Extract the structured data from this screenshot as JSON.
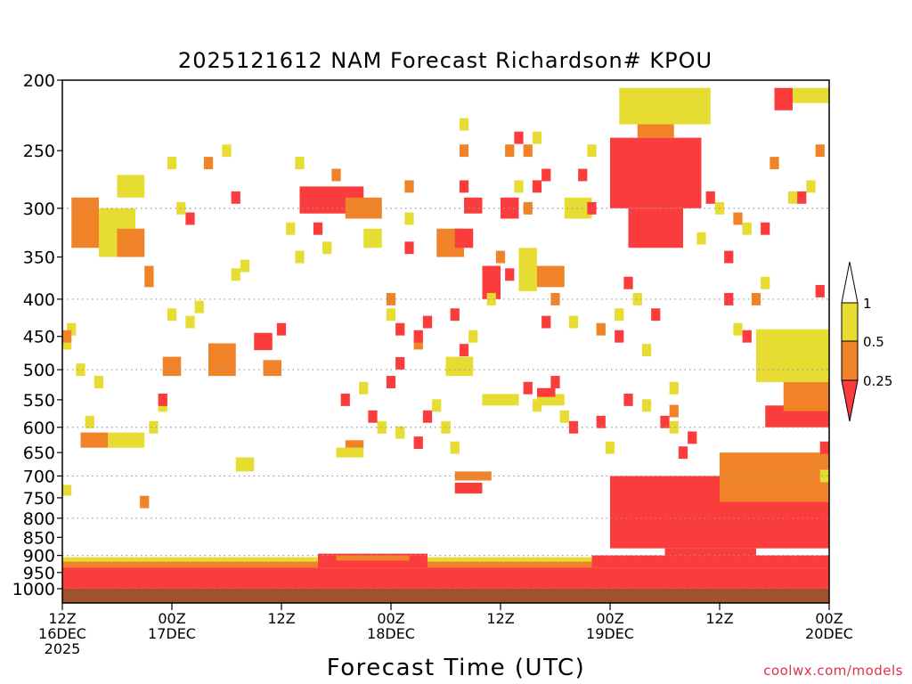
{
  "chart_data": {
    "type": "heatmap",
    "title": "2025121612 NAM Forecast Richardson# KPOU",
    "xlabel": "Forecast Time (UTC)",
    "ylabel": "",
    "credit": "coolwx.com/models",
    "x_range_hours": [
      0,
      84
    ],
    "y_range_hpa": [
      1000,
      200
    ],
    "y_scale": "log-pressure",
    "y_ticks": [
      200,
      250,
      300,
      350,
      400,
      450,
      500,
      550,
      600,
      650,
      700,
      750,
      800,
      850,
      900,
      950,
      1000
    ],
    "y_tick_labels": [
      "200",
      "250",
      "300",
      "350",
      "400",
      "450",
      "500",
      "550",
      "600",
      "650",
      "700",
      "750",
      "800",
      "850",
      "900",
      "950",
      "1000"
    ],
    "gridlines_hpa": [
      300,
      400,
      500,
      600,
      700,
      800,
      900,
      1000
    ],
    "x_ticks": [
      {
        "hour": 0,
        "line1": "12Z",
        "line2": "16DEC",
        "line3": "2025"
      },
      {
        "hour": 12,
        "line1": "00Z",
        "line2": "17DEC",
        "line3": ""
      },
      {
        "hour": 24,
        "line1": "12Z",
        "line2": "",
        "line3": ""
      },
      {
        "hour": 36,
        "line1": "00Z",
        "line2": "18DEC",
        "line3": ""
      },
      {
        "hour": 48,
        "line1": "12Z",
        "line2": "",
        "line3": ""
      },
      {
        "hour": 60,
        "line1": "00Z",
        "line2": "19DEC",
        "line3": ""
      },
      {
        "hour": 72,
        "line1": "12Z",
        "line2": "",
        "line3": ""
      },
      {
        "hour": 84,
        "line1": "00Z",
        "line2": "20DEC",
        "line3": ""
      }
    ],
    "legend": {
      "placement": "right",
      "thresholds": [
        "1",
        "0.5",
        "0.25"
      ],
      "bins": [
        {
          "name": ">1",
          "color": "#ffffff"
        },
        {
          "name": "0.5-1",
          "color": "#e6dc32"
        },
        {
          "name": "0.25-0.5",
          "color": "#f08228"
        },
        {
          "name": "<0.25",
          "color": "#fa3c3c"
        }
      ]
    },
    "colors": {
      "yellow": "#e6dc32",
      "orange": "#f08228",
      "red": "#fa3c3c",
      "ground": "#a0522d"
    },
    "ground_hpa": 1000,
    "regions": [
      {
        "bin": "yellow",
        "t": [
          0,
          84
        ],
        "p": [
          905,
          925
        ]
      },
      {
        "bin": "orange",
        "t": [
          0,
          84
        ],
        "p": [
          918,
          935
        ]
      },
      {
        "bin": "red",
        "t": [
          0,
          84
        ],
        "p": [
          935,
          1000
        ]
      },
      {
        "bin": "red",
        "t": [
          28,
          40
        ],
        "p": [
          895,
          935
        ]
      },
      {
        "bin": "orange",
        "t": [
          30,
          38
        ],
        "p": [
          900,
          915
        ]
      },
      {
        "bin": "red",
        "t": [
          58,
          84
        ],
        "p": [
          900,
          935
        ]
      },
      {
        "bin": "red",
        "t": [
          66,
          76
        ],
        "p": [
          880,
          905
        ]
      },
      {
        "bin": "red",
        "t": [
          60,
          84
        ],
        "p": [
          700,
          880
        ]
      },
      {
        "bin": "orange",
        "t": [
          72,
          84
        ],
        "p": [
          650,
          760
        ]
      },
      {
        "bin": "red",
        "t": [
          77,
          84
        ],
        "p": [
          560,
          600
        ]
      },
      {
        "bin": "orange",
        "t": [
          79,
          84
        ],
        "p": [
          520,
          570
        ]
      },
      {
        "bin": "yellow",
        "t": [
          76,
          84
        ],
        "p": [
          440,
          520
        ]
      },
      {
        "bin": "red",
        "t": [
          60,
          70
        ],
        "p": [
          240,
          300
        ]
      },
      {
        "bin": "red",
        "t": [
          62,
          68
        ],
        "p": [
          300,
          340
        ]
      },
      {
        "bin": "orange",
        "t": [
          63,
          67
        ],
        "p": [
          215,
          240
        ]
      },
      {
        "bin": "yellow",
        "t": [
          61,
          71
        ],
        "p": [
          205,
          230
        ]
      },
      {
        "bin": "red",
        "t": [
          78,
          80
        ],
        "p": [
          205,
          220
        ]
      },
      {
        "bin": "yellow",
        "t": [
          80,
          84
        ],
        "p": [
          205,
          215
        ]
      },
      {
        "bin": "orange",
        "t": [
          1,
          4
        ],
        "p": [
          290,
          340
        ]
      },
      {
        "bin": "yellow",
        "t": [
          4,
          8
        ],
        "p": [
          300,
          350
        ]
      },
      {
        "bin": "orange",
        "t": [
          6,
          9
        ],
        "p": [
          320,
          350
        ]
      },
      {
        "bin": "yellow",
        "t": [
          6,
          9
        ],
        "p": [
          270,
          290
        ]
      },
      {
        "bin": "orange",
        "t": [
          9,
          10
        ],
        "p": [
          360,
          385
        ]
      },
      {
        "bin": "red",
        "t": [
          26,
          33
        ],
        "p": [
          280,
          305
        ]
      },
      {
        "bin": "orange",
        "t": [
          31,
          35
        ],
        "p": [
          290,
          310
        ]
      },
      {
        "bin": "yellow",
        "t": [
          33,
          35
        ],
        "p": [
          320,
          340
        ]
      },
      {
        "bin": "orange",
        "t": [
          41,
          44
        ],
        "p": [
          320,
          350
        ]
      },
      {
        "bin": "red",
        "t": [
          43,
          45
        ],
        "p": [
          320,
          340
        ]
      },
      {
        "bin": "red",
        "t": [
          44,
          46
        ],
        "p": [
          290,
          305
        ]
      },
      {
        "bin": "red",
        "t": [
          46,
          48
        ],
        "p": [
          360,
          400
        ]
      },
      {
        "bin": "red",
        "t": [
          48,
          50
        ],
        "p": [
          290,
          310
        ]
      },
      {
        "bin": "yellow",
        "t": [
          50,
          52
        ],
        "p": [
          340,
          390
        ]
      },
      {
        "bin": "orange",
        "t": [
          52,
          55
        ],
        "p": [
          360,
          385
        ]
      },
      {
        "bin": "yellow",
        "t": [
          55,
          58
        ],
        "p": [
          290,
          310
        ]
      },
      {
        "bin": "orange",
        "t": [
          2,
          5
        ],
        "p": [
          610,
          640
        ]
      },
      {
        "bin": "yellow",
        "t": [
          5,
          9
        ],
        "p": [
          610,
          640
        ]
      },
      {
        "bin": "orange",
        "t": [
          11,
          13
        ],
        "p": [
          480,
          510
        ]
      },
      {
        "bin": "orange",
        "t": [
          16,
          19
        ],
        "p": [
          460,
          510
        ]
      },
      {
        "bin": "red",
        "t": [
          21,
          23
        ],
        "p": [
          445,
          470
        ]
      },
      {
        "bin": "orange",
        "t": [
          22,
          24
        ],
        "p": [
          485,
          510
        ]
      },
      {
        "bin": "yellow",
        "t": [
          42,
          45
        ],
        "p": [
          480,
          510
        ]
      },
      {
        "bin": "yellow",
        "t": [
          46,
          50
        ],
        "p": [
          540,
          560
        ]
      },
      {
        "bin": "yellow",
        "t": [
          52,
          55
        ],
        "p": [
          540,
          560
        ]
      },
      {
        "bin": "red",
        "t": [
          52,
          54
        ],
        "p": [
          530,
          545
        ]
      },
      {
        "bin": "orange",
        "t": [
          43,
          47
        ],
        "p": [
          690,
          710
        ]
      },
      {
        "bin": "red",
        "t": [
          43,
          46
        ],
        "p": [
          715,
          740
        ]
      },
      {
        "bin": "yellow",
        "t": [
          30,
          33
        ],
        "p": [
          640,
          660
        ]
      },
      {
        "bin": "orange",
        "t": [
          31,
          33
        ],
        "p": [
          625,
          640
        ]
      },
      {
        "bin": "yellow",
        "t": [
          0,
          1
        ],
        "p": [
          720,
          745
        ]
      },
      {
        "bin": "yellow",
        "t": [
          19,
          21
        ],
        "p": [
          660,
          690
        ]
      }
    ],
    "cells": [
      [
        "yellow",
        1,
        440
      ],
      [
        "yellow",
        0,
        460
      ],
      [
        "orange",
        0,
        450
      ],
      [
        "yellow",
        2,
        500
      ],
      [
        "yellow",
        3,
        590
      ],
      [
        "yellow",
        4,
        520
      ],
      [
        "orange",
        9,
        760
      ],
      [
        "yellow",
        10,
        600
      ],
      [
        "yellow",
        11,
        560
      ],
      [
        "red",
        11,
        550
      ],
      [
        "yellow",
        12,
        420
      ],
      [
        "yellow",
        14,
        430
      ],
      [
        "yellow",
        15,
        410
      ],
      [
        "red",
        14,
        310
      ],
      [
        "yellow",
        12,
        260
      ],
      [
        "yellow",
        13,
        300
      ],
      [
        "orange",
        16,
        260
      ],
      [
        "yellow",
        18,
        250
      ],
      [
        "red",
        19,
        290
      ],
      [
        "yellow",
        19,
        370
      ],
      [
        "yellow",
        20,
        360
      ],
      [
        "red",
        24,
        440
      ],
      [
        "yellow",
        25,
        320
      ],
      [
        "yellow",
        26,
        350
      ],
      [
        "yellow",
        26,
        260
      ],
      [
        "red",
        28,
        320
      ],
      [
        "yellow",
        29,
        340
      ],
      [
        "orange",
        30,
        270
      ],
      [
        "yellow",
        33,
        530
      ],
      [
        "red",
        31,
        550
      ],
      [
        "red",
        34,
        580
      ],
      [
        "yellow",
        35,
        600
      ],
      [
        "orange",
        36,
        400
      ],
      [
        "yellow",
        36,
        420
      ],
      [
        "red",
        37,
        440
      ],
      [
        "red",
        37,
        490
      ],
      [
        "red",
        36,
        520
      ],
      [
        "yellow",
        37,
        610
      ],
      [
        "orange",
        38,
        280
      ],
      [
        "yellow",
        38,
        310
      ],
      [
        "red",
        38,
        340
      ],
      [
        "orange",
        39,
        460
      ],
      [
        "red",
        39,
        450
      ],
      [
        "red",
        40,
        430
      ],
      [
        "yellow",
        41,
        560
      ],
      [
        "red",
        40,
        580
      ],
      [
        "red",
        39,
        630
      ],
      [
        "yellow",
        43,
        640
      ],
      [
        "yellow",
        42,
        600
      ],
      [
        "orange",
        44,
        250
      ],
      [
        "red",
        44,
        280
      ],
      [
        "yellow",
        44,
        230
      ],
      [
        "red",
        44,
        470
      ],
      [
        "red",
        43,
        420
      ],
      [
        "yellow",
        45,
        450
      ],
      [
        "orange",
        48,
        350
      ],
      [
        "red",
        49,
        370
      ],
      [
        "yellow",
        47,
        400
      ],
      [
        "red",
        50,
        240
      ],
      [
        "orange",
        49,
        250
      ],
      [
        "red",
        49,
        300
      ],
      [
        "yellow",
        50,
        280
      ],
      [
        "orange",
        51,
        250
      ],
      [
        "yellow",
        52,
        240
      ],
      [
        "orange",
        51,
        300
      ],
      [
        "red",
        52,
        280
      ],
      [
        "red",
        53,
        270
      ],
      [
        "yellow",
        52,
        560
      ],
      [
        "red",
        51,
        530
      ],
      [
        "red",
        54,
        520
      ],
      [
        "yellow",
        55,
        580
      ],
      [
        "red",
        56,
        600
      ],
      [
        "orange",
        54,
        400
      ],
      [
        "red",
        53,
        430
      ],
      [
        "yellow",
        56,
        430
      ],
      [
        "red",
        57,
        270
      ],
      [
        "yellow",
        58,
        250
      ],
      [
        "red",
        58,
        300
      ],
      [
        "red",
        59,
        590
      ],
      [
        "yellow",
        60,
        640
      ],
      [
        "orange",
        59,
        440
      ],
      [
        "red",
        61,
        450
      ],
      [
        "yellow",
        61,
        420
      ],
      [
        "red",
        62,
        380
      ],
      [
        "yellow",
        63,
        400
      ],
      [
        "red",
        62,
        550
      ],
      [
        "yellow",
        64,
        560
      ],
      [
        "yellow",
        64,
        470
      ],
      [
        "red",
        65,
        420
      ],
      [
        "red",
        66,
        590
      ],
      [
        "yellow",
        67,
        530
      ],
      [
        "yellow",
        67,
        600
      ],
      [
        "red",
        68,
        650
      ],
      [
        "orange",
        67,
        570
      ],
      [
        "red",
        69,
        620
      ],
      [
        "yellow",
        70,
        330
      ],
      [
        "red",
        71,
        290
      ],
      [
        "yellow",
        72,
        300
      ],
      [
        "red",
        73,
        350
      ],
      [
        "orange",
        74,
        310
      ],
      [
        "yellow",
        75,
        320
      ],
      [
        "red",
        73,
        400
      ],
      [
        "yellow",
        74,
        440
      ],
      [
        "red",
        75,
        450
      ],
      [
        "orange",
        76,
        400
      ],
      [
        "yellow",
        77,
        380
      ],
      [
        "red",
        77,
        320
      ],
      [
        "orange",
        78,
        260
      ],
      [
        "yellow",
        80,
        290
      ],
      [
        "red",
        81,
        290
      ],
      [
        "yellow",
        82,
        280
      ],
      [
        "orange",
        83,
        250
      ],
      [
        "red",
        83,
        390
      ],
      [
        "yellow",
        84,
        700
      ],
      [
        "red",
        84,
        640
      ]
    ]
  }
}
